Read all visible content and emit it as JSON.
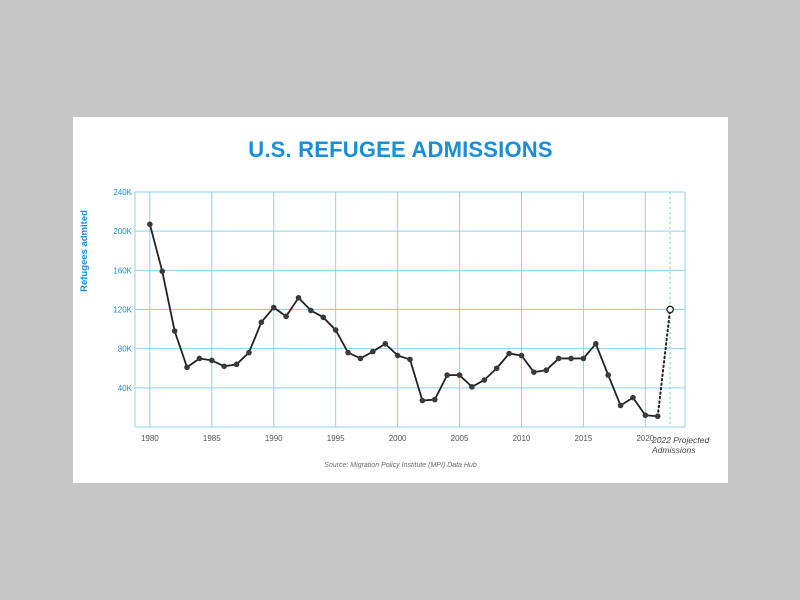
{
  "chart_data": {
    "type": "line",
    "title": "U.S. REFUGEE ADMISSIONS",
    "ylabel": "Refugees admited",
    "xlabel": "",
    "source": "Source: Migration Policy Institute (MPI) Data Hub",
    "xlim": [
      1978.8,
      2023.2
    ],
    "ylim": [
      0,
      240000
    ],
    "grid": true,
    "x_ticks": [
      1980,
      1985,
      1990,
      1995,
      2000,
      2005,
      2010,
      2015,
      2020
    ],
    "y_ticks": [
      {
        "value": 40000,
        "label": "40K"
      },
      {
        "value": 80000,
        "label": "80K"
      },
      {
        "value": 120000,
        "label": "120K"
      },
      {
        "value": 160000,
        "label": "160K"
      },
      {
        "value": 200000,
        "label": "200K"
      },
      {
        "value": 240000,
        "label": "240K"
      }
    ],
    "series": [
      {
        "x": [
          1980,
          1981,
          1982,
          1983,
          1984,
          1985,
          1986,
          1987,
          1988,
          1989,
          1990,
          1991,
          1992,
          1993,
          1994,
          1995,
          1996,
          1997,
          1998,
          1999,
          2000,
          2001,
          2002,
          2003,
          2004,
          2005,
          2006,
          2007,
          2008,
          2009,
          2010,
          2011,
          2012,
          2013,
          2014,
          2015,
          2016,
          2017,
          2018,
          2019,
          2020,
          2021
        ],
        "y": [
          207000,
          159000,
          98000,
          61000,
          70000,
          68000,
          62000,
          64000,
          76000,
          107000,
          122000,
          113000,
          132000,
          119000,
          112000,
          99000,
          76000,
          70000,
          77000,
          85000,
          73000,
          69000,
          27000,
          28000,
          53000,
          53000,
          41000,
          48000,
          60000,
          75000,
          73000,
          56000,
          58000,
          70000,
          70000,
          70000,
          85000,
          53000,
          22000,
          30000,
          12000,
          11000
        ]
      }
    ],
    "projection": {
      "label_line1": "2022 Projected",
      "label_line2": "Admissions",
      "x": 2022,
      "y": 120000
    },
    "colors": {
      "accent": "#1a8fd8",
      "grid": "#8fd0f5",
      "line": "#222222",
      "projection_guide": "#9ed6f2"
    }
  }
}
